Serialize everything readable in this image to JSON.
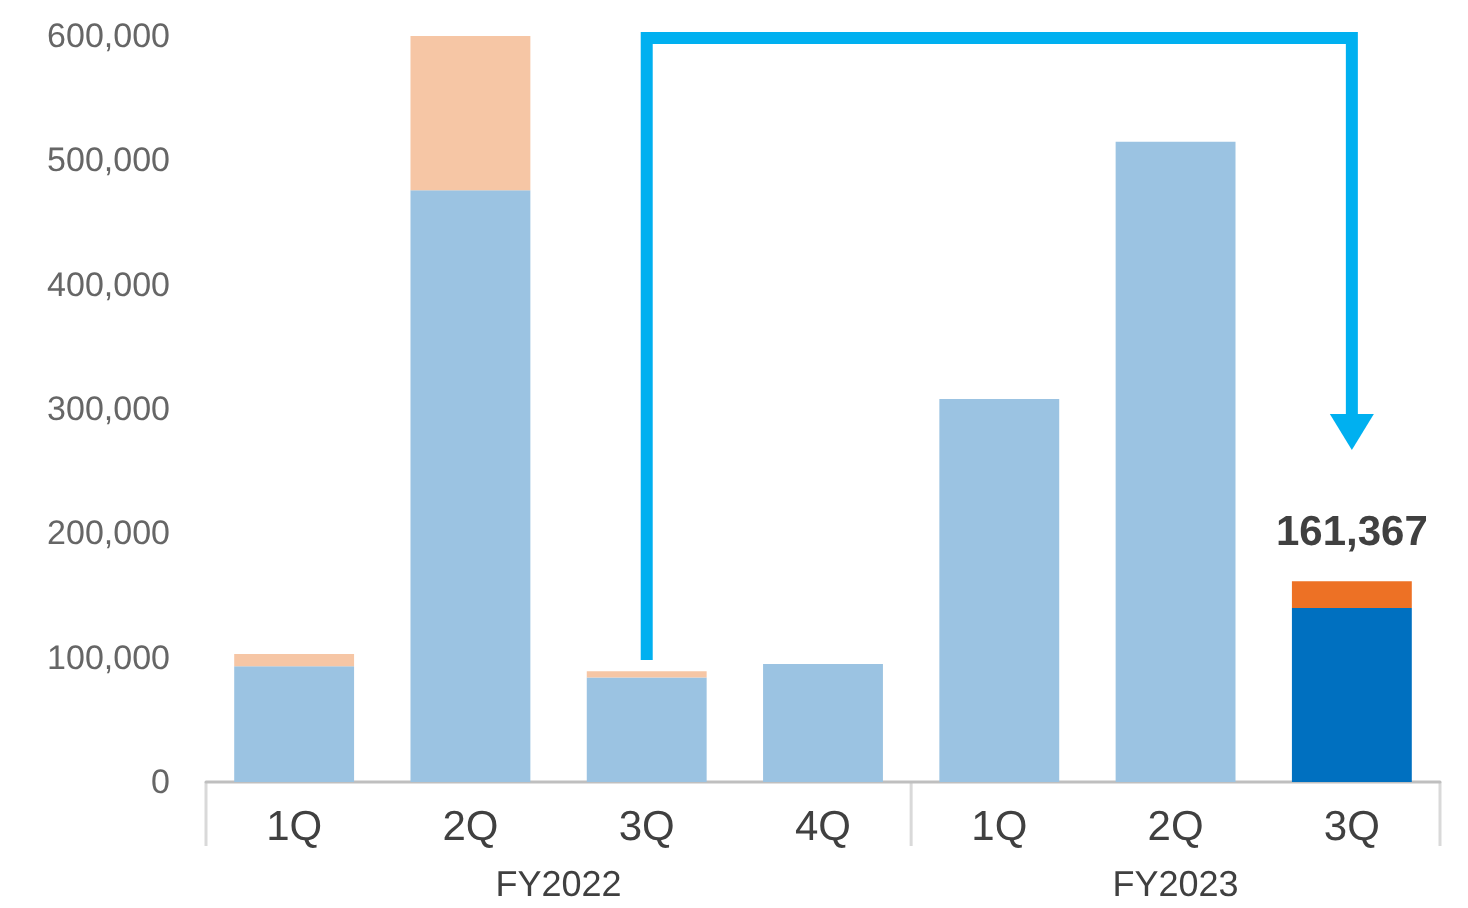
{
  "chart_data": {
    "type": "bar",
    "stacked": true,
    "categories": [
      "1Q",
      "2Q",
      "3Q",
      "4Q",
      "1Q",
      "2Q",
      "3Q"
    ],
    "series": [
      {
        "colors": [
          "#9bc3e2",
          "#9bc3e2",
          "#9bc3e2",
          "#9bc3e2",
          "#9bc3e2",
          "#9bc3e2",
          "#0070c0"
        ],
        "values": [
          93000,
          476000,
          84000,
          95000,
          308000,
          515000,
          140000
        ]
      },
      {
        "colors": [
          "#f6c6a5",
          "#f6c6a5",
          "#f6c6a5",
          "#f6c6a5",
          "#f6c6a5",
          "#f6c6a5",
          "#ed7125"
        ],
        "values": [
          10000,
          124000,
          5000,
          null,
          null,
          null,
          21367
        ]
      }
    ],
    "totals": [
      null,
      null,
      null,
      null,
      null,
      null,
      "161,367"
    ],
    "annotations": [
      "FY2022",
      "FY2023"
    ],
    "ylim": [
      0,
      600000
    ],
    "yticks": [
      {
        "value": 0,
        "label": "0"
      },
      {
        "value": 100000,
        "label": "100,000"
      },
      {
        "value": 200000,
        "label": "200,000"
      },
      {
        "value": 300000,
        "label": "300,000"
      },
      {
        "value": 400000,
        "label": "400,000"
      },
      {
        "value": 500000,
        "label": "500,000"
      },
      {
        "value": 600000,
        "label": "600,000"
      }
    ],
    "grid": false
  }
}
